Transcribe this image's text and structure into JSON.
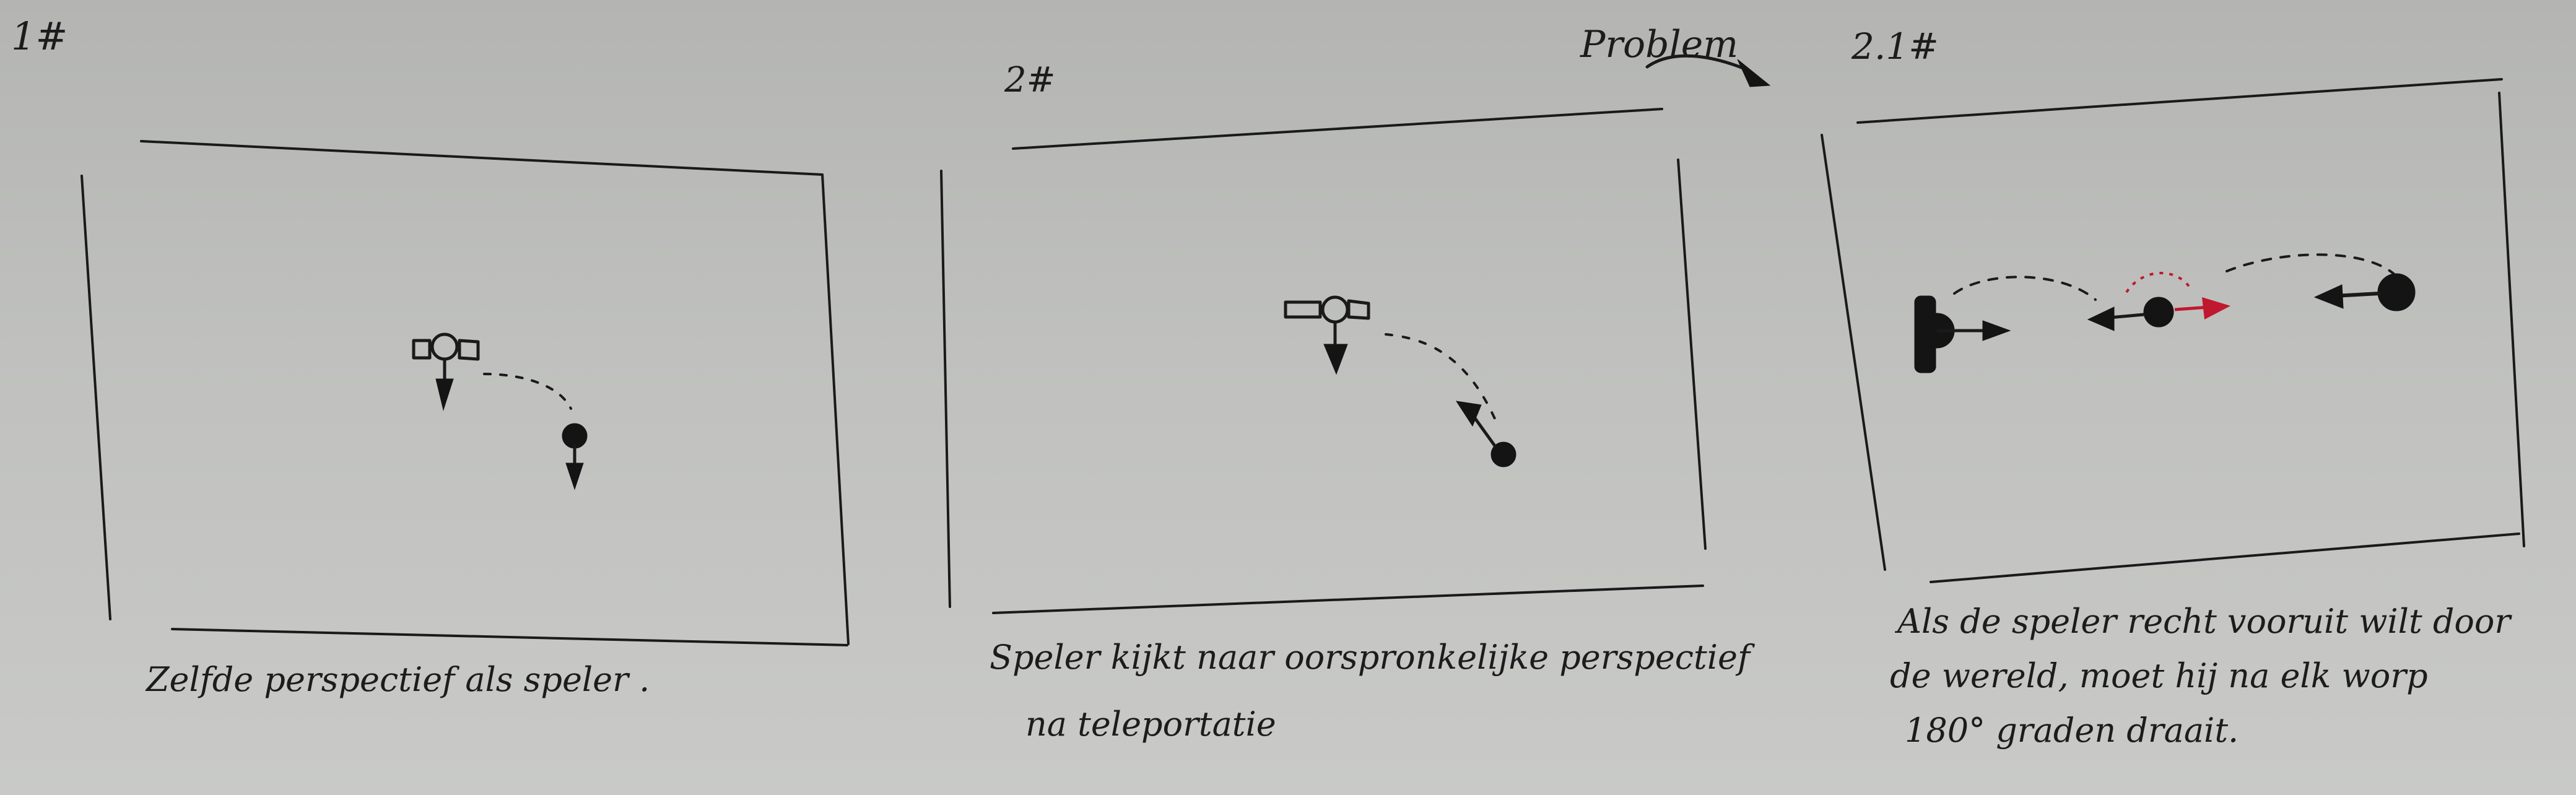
{
  "header": {
    "panel1_number": "1#",
    "panel2_number": "2#",
    "problem_label": "Problem",
    "panel3_number": "2.1#"
  },
  "panels": [
    {
      "caption_lines": [
        "Zelfde perspectief als speler ."
      ]
    },
    {
      "caption_lines": [
        "Speler kijkt naar oorspronkelijke perspectief",
        "na teleportatie"
      ]
    },
    {
      "caption_lines": [
        "Als de speler recht vooruit wilt door",
        "de wereld, moet hij na elk worp",
        "180° graden draait."
      ]
    }
  ],
  "colors": {
    "ink": "#1a1a1a",
    "accent": "#c0182e",
    "paper": "#c2c3c0"
  }
}
